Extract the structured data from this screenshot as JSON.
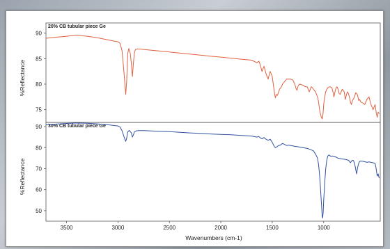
{
  "chart_data": [
    {
      "type": "line",
      "title": "20% CB tubular piece Ge",
      "ylabel": "%Reflectance",
      "xlabel": "",
      "xlim": [
        3700,
        450
      ],
      "ylim": [
        72.5,
        92
      ],
      "yticks": [
        75,
        80,
        85,
        90
      ],
      "color": "#e06040",
      "x": [
        3700,
        3600,
        3500,
        3400,
        3300,
        3200,
        3100,
        3050,
        3000,
        2980,
        2960,
        2940,
        2925,
        2915,
        2905,
        2895,
        2880,
        2870,
        2860,
        2850,
        2840,
        2830,
        2810,
        2790,
        2770,
        2750,
        2700,
        2600,
        2500,
        2400,
        2300,
        2200,
        2100,
        2000,
        1900,
        1800,
        1700,
        1650,
        1630,
        1620,
        1600,
        1580,
        1560,
        1540,
        1530,
        1520,
        1500,
        1480,
        1470,
        1460,
        1450,
        1440,
        1430,
        1410,
        1400,
        1380,
        1360,
        1340,
        1320,
        1300,
        1280,
        1270,
        1260,
        1250,
        1240,
        1230,
        1220,
        1200,
        1180,
        1160,
        1150,
        1140,
        1130,
        1120,
        1110,
        1100,
        1080,
        1060,
        1050,
        1040,
        1030,
        1020,
        1015,
        1010,
        1005,
        1000,
        990,
        980,
        970,
        960,
        940,
        920,
        910,
        900,
        890,
        880,
        870,
        860,
        850,
        840,
        830,
        820,
        810,
        800,
        790,
        780,
        770,
        760,
        750,
        740,
        730,
        720,
        700,
        690,
        680,
        670,
        660,
        650,
        640,
        620,
        600,
        580,
        560,
        540,
        520,
        500,
        490,
        480,
        470,
        460
      ],
      "y": [
        89.0,
        89.2,
        89.4,
        89.6,
        89.4,
        89.1,
        88.7,
        88.5,
        88.3,
        88.0,
        86.5,
        82.0,
        78.0,
        80.5,
        86.0,
        87.0,
        86.0,
        84.0,
        81.5,
        84.0,
        86.2,
        86.8,
        86.9,
        86.9,
        86.85,
        86.8,
        86.7,
        86.5,
        86.3,
        86.1,
        85.9,
        85.7,
        85.5,
        85.3,
        85.1,
        84.9,
        84.7,
        84.2,
        84.5,
        84.0,
        82.5,
        83.5,
        82.0,
        81.0,
        81.8,
        82.5,
        81.5,
        78.5,
        77.3,
        78.0,
        77.8,
        78.3,
        79.0,
        79.5,
        80.0,
        80.5,
        81.0,
        81.0,
        81.0,
        80.8,
        80.0,
        79.2,
        78.8,
        79.5,
        79.9,
        80.0,
        79.9,
        79.8,
        79.5,
        79.5,
        79.0,
        78.5,
        79.0,
        79.5,
        79.3,
        79.0,
        78.5,
        77.5,
        76.5,
        75.0,
        74.0,
        73.4,
        73.2,
        73.5,
        74.5,
        76.0,
        77.5,
        78.5,
        79.0,
        79.3,
        79.5,
        79.3,
        78.5,
        77.5,
        78.5,
        79.3,
        79.5,
        79.0,
        78.2,
        78.0,
        78.5,
        79.0,
        78.8,
        78.5,
        77.0,
        77.8,
        78.5,
        78.2,
        77.5,
        76.5,
        76.0,
        76.8,
        77.5,
        78.3,
        78.2,
        77.8,
        76.8,
        77.0,
        76.5,
        76.3,
        76.0,
        77.0,
        77.5,
        76.0,
        75.0,
        76.0,
        74.5,
        73.5,
        74.5,
        74.2
      ]
    },
    {
      "type": "line",
      "title": "30% CB tubular piece Ge",
      "ylabel": "%Reflectance",
      "xlabel": "Wavenumbers (cm-1)",
      "xlim": [
        3700,
        450
      ],
      "ylim": [
        45,
        92
      ],
      "yticks": [
        50,
        60,
        70,
        80,
        90
      ],
      "xticks": [
        3500,
        3000,
        2500,
        2000,
        1500,
        1000
      ],
      "color": "#3050a0",
      "x": [
        3700,
        3600,
        3500,
        3400,
        3300,
        3200,
        3100,
        3050,
        3000,
        2980,
        2960,
        2940,
        2925,
        2915,
        2905,
        2890,
        2870,
        2860,
        2850,
        2840,
        2820,
        2800,
        2750,
        2700,
        2600,
        2500,
        2400,
        2300,
        2200,
        2100,
        2000,
        1900,
        1800,
        1700,
        1650,
        1630,
        1620,
        1600,
        1580,
        1560,
        1540,
        1520,
        1500,
        1480,
        1470,
        1460,
        1450,
        1440,
        1420,
        1400,
        1380,
        1360,
        1340,
        1320,
        1300,
        1280,
        1250,
        1200,
        1150,
        1100,
        1080,
        1060,
        1050,
        1040,
        1030,
        1020,
        1015,
        1010,
        1005,
        1000,
        990,
        980,
        970,
        960,
        950,
        940,
        930,
        920,
        900,
        880,
        860,
        840,
        820,
        800,
        780,
        760,
        750,
        740,
        730,
        720,
        710,
        700,
        690,
        680,
        670,
        660,
        650,
        640,
        620,
        600,
        580,
        560,
        540,
        520,
        500,
        490,
        480,
        470,
        460
      ],
      "y": [
        90.8,
        91.2,
        91.5,
        91.7,
        91.6,
        91.3,
        90.9,
        90.6,
        90.3,
        89.8,
        88.0,
        85.0,
        83.0,
        84.5,
        87.5,
        88.2,
        87.0,
        85.0,
        86.0,
        87.5,
        88.0,
        88.1,
        88.1,
        88.0,
        87.8,
        87.6,
        87.3,
        87.0,
        86.8,
        86.5,
        86.3,
        86.1,
        85.8,
        85.5,
        85.0,
        85.3,
        84.8,
        84.2,
        84.8,
        84.0,
        83.5,
        84.0,
        82.5,
        80.5,
        80.0,
        80.3,
        80.5,
        81.0,
        81.2,
        82.0,
        81.5,
        81.0,
        81.2,
        81.0,
        80.8,
        80.6,
        80.4,
        80.0,
        79.5,
        78.5,
        77.0,
        75.0,
        72.0,
        67.0,
        60.0,
        52.0,
        47.5,
        46.5,
        49.0,
        55.0,
        63.0,
        70.0,
        74.0,
        76.0,
        76.5,
        76.2,
        75.8,
        76.0,
        75.8,
        75.5,
        75.0,
        74.8,
        74.6,
        74.5,
        74.3,
        74.0,
        73.5,
        72.8,
        73.5,
        74.0,
        73.8,
        72.5,
        70.0,
        67.5,
        70.5,
        72.5,
        73.5,
        73.6,
        73.5,
        73.3,
        73.0,
        73.2,
        73.0,
        72.8,
        72.5,
        70.0,
        66.5,
        67.5,
        65.5
      ]
    }
  ]
}
